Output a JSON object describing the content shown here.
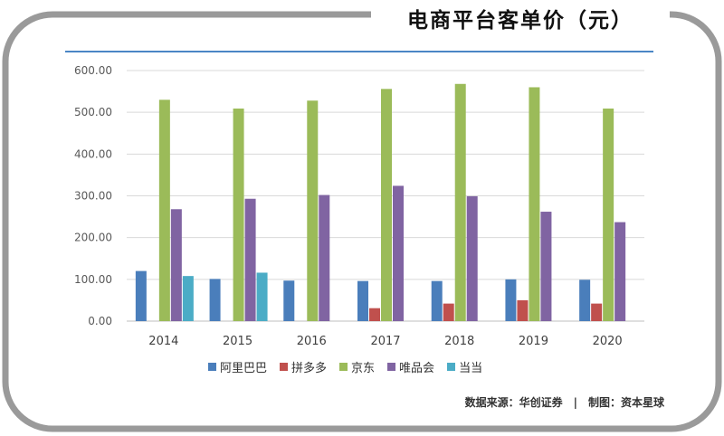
{
  "title": "电商平台客单价（元）",
  "source": "数据来源：华创证券　|　制图：资本星球",
  "chart_data": {
    "type": "bar",
    "title": "电商平台客单价（元）",
    "categories": [
      "2014",
      "2015",
      "2016",
      "2017",
      "2018",
      "2019",
      "2020"
    ],
    "ylim": [
      0,
      600
    ],
    "yticks": [
      "0.00",
      "100.00",
      "200.00",
      "300.00",
      "400.00",
      "500.00",
      "600.00"
    ],
    "legend_position": "bottom",
    "grid": true,
    "series": [
      {
        "name": "阿里巴巴",
        "color": "#4a7ebb",
        "values": [
          120,
          101,
          97,
          96,
          96,
          100,
          99
        ]
      },
      {
        "name": "拼多多",
        "color": "#c0504d",
        "values": [
          null,
          null,
          null,
          31,
          42,
          50,
          42
        ]
      },
      {
        "name": "京东",
        "color": "#9bbb59",
        "values": [
          530,
          509,
          528,
          556,
          568,
          560,
          509
        ]
      },
      {
        "name": "唯品会",
        "color": "#8064a2",
        "values": [
          268,
          293,
          302,
          324,
          299,
          262,
          237
        ]
      },
      {
        "name": "当当",
        "color": "#4bacc6",
        "values": [
          108,
          116,
          null,
          null,
          null,
          null,
          null
        ]
      }
    ]
  }
}
